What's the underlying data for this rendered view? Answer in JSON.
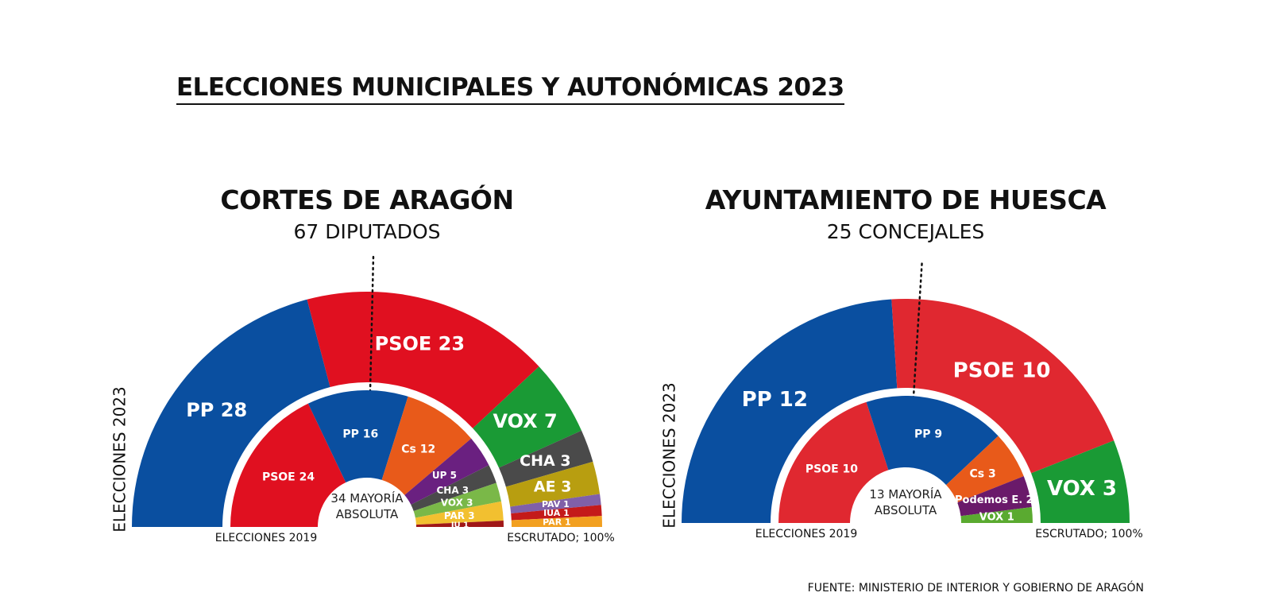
{
  "title": "ELECCIONES MUNICIPALES Y AUTONÓMICAS 2023",
  "source": "FUENTE: MINISTERIO DE INTERIOR Y GOBIERNO DE ARAGÓN",
  "chart_data": [
    {
      "type": "semi-donut",
      "title": "CORTES DE ARAGÓN",
      "subtitle": "67 DIPUTADOS",
      "majority": {
        "value": 34,
        "label": "34 MAYORÍA ABSOLUTA"
      },
      "note": "ESCRUTADO; 100%",
      "series": [
        {
          "name": "ELECCIONES 2023",
          "values": [
            28,
            23,
            7,
            3,
            3,
            1,
            1,
            1
          ],
          "value_labels": [
            "PP 28",
            "PSOE 23",
            "VOX 7",
            "CHA 3",
            "AE 3",
            "PAV 1",
            "IUA 1",
            "PAR 1"
          ],
          "colors": [
            "#0a4fa0",
            "#e01020",
            "#1a9a35",
            "#4a4a4a",
            "#b89e10",
            "#8060a8",
            "#c41a1a",
            "#f2a020"
          ]
        },
        {
          "name": "ELECCIONES 2019",
          "values": [
            24,
            16,
            12,
            5,
            3,
            3,
            3,
            1
          ],
          "value_labels": [
            "PSOE 24",
            "PP 16",
            "Cs 12",
            "UP 5",
            "CHA 3",
            "VOX 3",
            "PAR 3",
            "IU 1"
          ],
          "colors": [
            "#e01020",
            "#0a4fa0",
            "#e85a1a",
            "#6a2080",
            "#4a4a4a",
            "#7ab848",
            "#f2c030",
            "#a01818"
          ]
        }
      ]
    },
    {
      "type": "semi-donut",
      "title": "AYUNTAMIENTO DE HUESCA",
      "subtitle": "25 CONCEJALES",
      "majority": {
        "value": 13,
        "label": "13 MAYORÍA ABSOLUTA"
      },
      "note": "ESCRUTADO; 100%",
      "series": [
        {
          "name": "ELECCIONES 2023",
          "values": [
            12,
            10,
            3
          ],
          "value_labels": [
            "PP 12",
            "PSOE 10",
            "VOX 3"
          ],
          "colors": [
            "#0a4fa0",
            "#e02830",
            "#1a9a35"
          ]
        },
        {
          "name": "ELECCIONES 2019",
          "values": [
            10,
            9,
            3,
            2,
            1
          ],
          "value_labels": [
            "PSOE 10",
            "PP 9",
            "Cs 3",
            "Podemos E. 2",
            "VOX 1"
          ],
          "colors": [
            "#e02830",
            "#0a4fa0",
            "#e85a1a",
            "#6a1a6a",
            "#5aaa30"
          ]
        }
      ]
    }
  ]
}
